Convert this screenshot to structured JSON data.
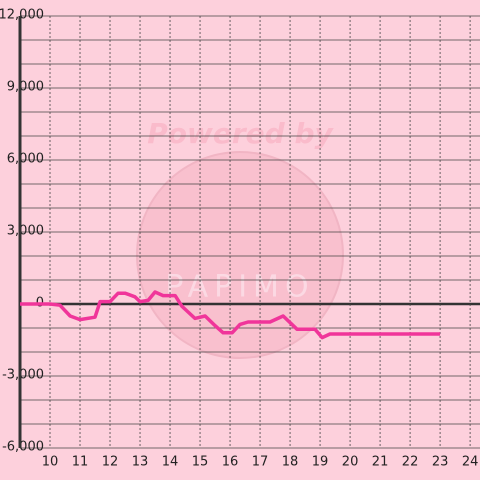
{
  "chart_data": {
    "type": "line",
    "watermark": [
      "Powered by",
      "PAPIMO"
    ],
    "x": [
      9,
      10,
      10.33,
      10.67,
      11,
      11.5,
      11.67,
      12,
      12.27,
      12.5,
      12.83,
      13,
      13.27,
      13.5,
      13.77,
      14.17,
      14.4,
      14.83,
      15.17,
      15.5,
      15.77,
      16.07,
      16.33,
      16.6,
      17.33,
      17.77,
      18.23,
      18.83,
      19.07,
      19.33,
      23
    ],
    "series": [
      {
        "color": "#f0359a",
        "values": [
          0,
          0,
          -50,
          -500,
          -650,
          -550,
          100,
          100,
          450,
          450,
          300,
          100,
          150,
          500,
          350,
          350,
          -100,
          -600,
          -500,
          -900,
          -1200,
          -1200,
          -850,
          -750,
          -750,
          -500,
          -1050,
          -1050,
          -1400,
          -1250,
          -1250
        ]
      }
    ],
    "xlim": [
      9,
      24.33
    ],
    "xticks": [
      10,
      11,
      12,
      13,
      14,
      15,
      16,
      17,
      18,
      19,
      20,
      21,
      22,
      23,
      24
    ],
    "ylim": [
      -6000,
      12000
    ],
    "yticks": [
      {
        "value": -6000,
        "label": "-6,000"
      },
      {
        "value": -3000,
        "label": "-3,000"
      },
      0,
      {
        "value": 3000,
        "label": "3,000"
      },
      {
        "value": 6000,
        "label": "6,000"
      },
      {
        "value": 9000,
        "label": "9,000"
      },
      {
        "value": 12000,
        "label": "12,000"
      }
    ],
    "yminorticks": [
      -5000,
      -4000,
      -2000,
      -1000,
      1000,
      2000,
      4000,
      5000,
      7000,
      8000,
      10000,
      11000
    ],
    "grid": true
  }
}
